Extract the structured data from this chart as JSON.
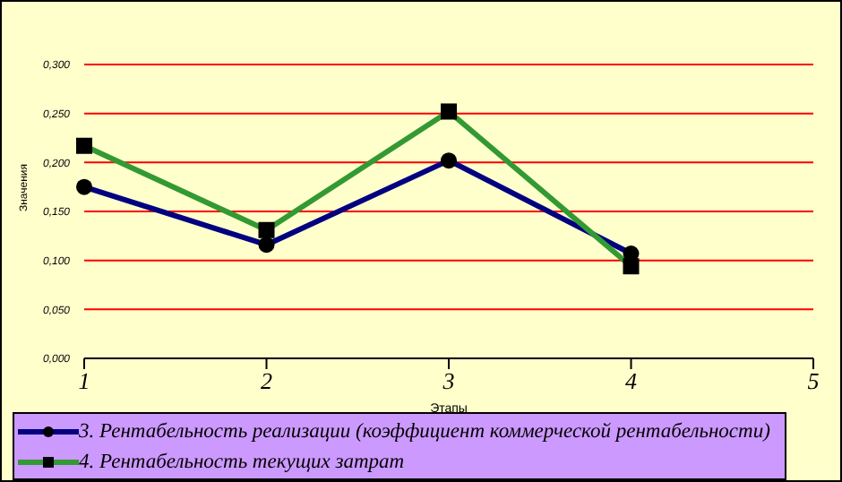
{
  "chart_data": {
    "type": "line",
    "xlabel": "Этапы",
    "ylabel": "Значения",
    "categories": [
      "1",
      "2",
      "3",
      "4",
      "5"
    ],
    "series": [
      {
        "name": "3. Рентабельность реализации (коэффициент коммерческой рентабельности)",
        "color": "#000080",
        "marker": "circle",
        "values": [
          0.175,
          0.116,
          0.202,
          0.107,
          null
        ]
      },
      {
        "name": "4. Рентабельность текущих затрат",
        "color": "#339933",
        "marker": "square",
        "values": [
          0.217,
          0.131,
          0.252,
          0.094,
          null
        ]
      }
    ],
    "ylim": [
      0,
      0.3
    ],
    "yticks": [
      {
        "value": 0,
        "label": "0,000"
      },
      {
        "value": 0.05,
        "label": "0,050"
      },
      {
        "value": 0.1,
        "label": "0,100"
      },
      {
        "value": 0.15,
        "label": "0,150"
      },
      {
        "value": 0.2,
        "label": "0,200"
      },
      {
        "value": 0.25,
        "label": "0,250"
      },
      {
        "value": 0.3,
        "label": "0,300"
      }
    ],
    "grid": "y",
    "legend": "bottom"
  }
}
